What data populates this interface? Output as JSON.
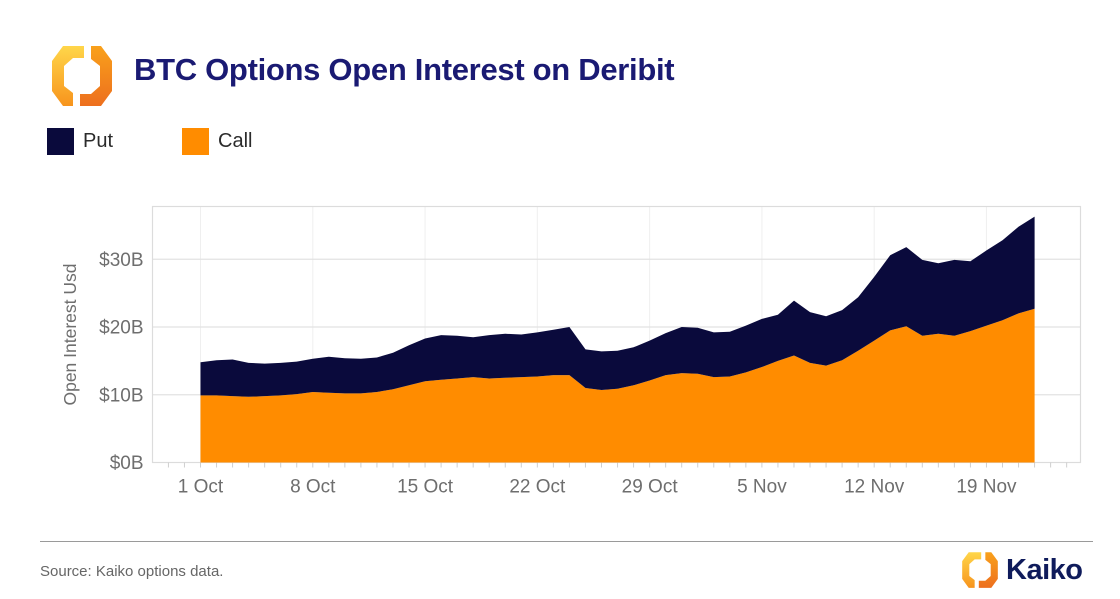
{
  "header": {
    "title": "BTC Options Open Interest on Deribit"
  },
  "legend": [
    {
      "label": "Put",
      "color": "#0A0A3C"
    },
    {
      "label": "Call",
      "color": "#FF8C00"
    }
  ],
  "chart_data": {
    "type": "area",
    "stacked": true,
    "title": "BTC Options Open Interest on Deribit",
    "xlabel": "",
    "ylabel": "Open Interest Usd",
    "ylim": [
      0,
      38
    ],
    "grid": "horizontal",
    "legend_position": "top-left",
    "y_ticks": [
      {
        "label": "$0B",
        "value": 0
      },
      {
        "label": "$10B",
        "value": 10
      },
      {
        "label": "$20B",
        "value": 20
      },
      {
        "label": "$30B",
        "value": 30
      }
    ],
    "x_ticks": [
      "1 Oct",
      "8 Oct",
      "15 Oct",
      "22 Oct",
      "29 Oct",
      "5 Nov",
      "12 Nov",
      "19 Nov"
    ],
    "dates": [
      "1 Oct",
      "2 Oct",
      "3 Oct",
      "4 Oct",
      "5 Oct",
      "6 Oct",
      "7 Oct",
      "8 Oct",
      "9 Oct",
      "10 Oct",
      "11 Oct",
      "12 Oct",
      "13 Oct",
      "14 Oct",
      "15 Oct",
      "16 Oct",
      "17 Oct",
      "18 Oct",
      "19 Oct",
      "20 Oct",
      "21 Oct",
      "22 Oct",
      "23 Oct",
      "24 Oct",
      "25 Oct",
      "26 Oct",
      "27 Oct",
      "28 Oct",
      "29 Oct",
      "30 Oct",
      "31 Oct",
      "1 Nov",
      "2 Nov",
      "3 Nov",
      "4 Nov",
      "5 Nov",
      "6 Nov",
      "7 Nov",
      "8 Nov",
      "9 Nov",
      "10 Nov",
      "11 Nov",
      "12 Nov",
      "13 Nov",
      "14 Nov",
      "15 Nov",
      "16 Nov",
      "17 Nov",
      "18 Nov",
      "19 Nov",
      "20 Nov",
      "21 Nov",
      "22 Nov"
    ],
    "series": [
      {
        "name": "Call",
        "color": "#FF8C00",
        "values": [
          9.9,
          9.9,
          9.8,
          9.7,
          9.8,
          9.9,
          10.1,
          10.4,
          10.3,
          10.2,
          10.2,
          10.4,
          10.8,
          11.4,
          12.0,
          12.2,
          12.4,
          12.6,
          12.4,
          12.5,
          12.6,
          12.7,
          12.9,
          12.9,
          11.0,
          10.7,
          10.9,
          11.4,
          12.1,
          12.9,
          13.2,
          13.1,
          12.6,
          12.7,
          13.3,
          14.1,
          15.0,
          15.8,
          14.7,
          14.3,
          15.1,
          16.5,
          18.0,
          19.5,
          20.1,
          18.7,
          19.0,
          18.7,
          19.4,
          20.2,
          21.0,
          22.0,
          22.7
        ]
      },
      {
        "name": "Put",
        "color": "#0A0A3C",
        "values": [
          4.9,
          5.2,
          5.4,
          5.0,
          4.8,
          4.8,
          4.8,
          4.9,
          5.3,
          5.2,
          5.1,
          5.1,
          5.4,
          5.9,
          6.3,
          6.6,
          6.3,
          5.9,
          6.4,
          6.5,
          6.3,
          6.5,
          6.7,
          7.1,
          5.7,
          5.7,
          5.6,
          5.6,
          5.9,
          6.2,
          6.8,
          6.8,
          6.6,
          6.6,
          6.9,
          7.1,
          6.8,
          8.1,
          7.5,
          7.3,
          7.4,
          7.9,
          9.4,
          11.1,
          11.7,
          11.2,
          10.4,
          11.2,
          10.3,
          11.1,
          11.8,
          12.8,
          13.6
        ]
      }
    ]
  },
  "footer": {
    "source": "Source: Kaiko options data.",
    "brand": "Kaiko"
  }
}
